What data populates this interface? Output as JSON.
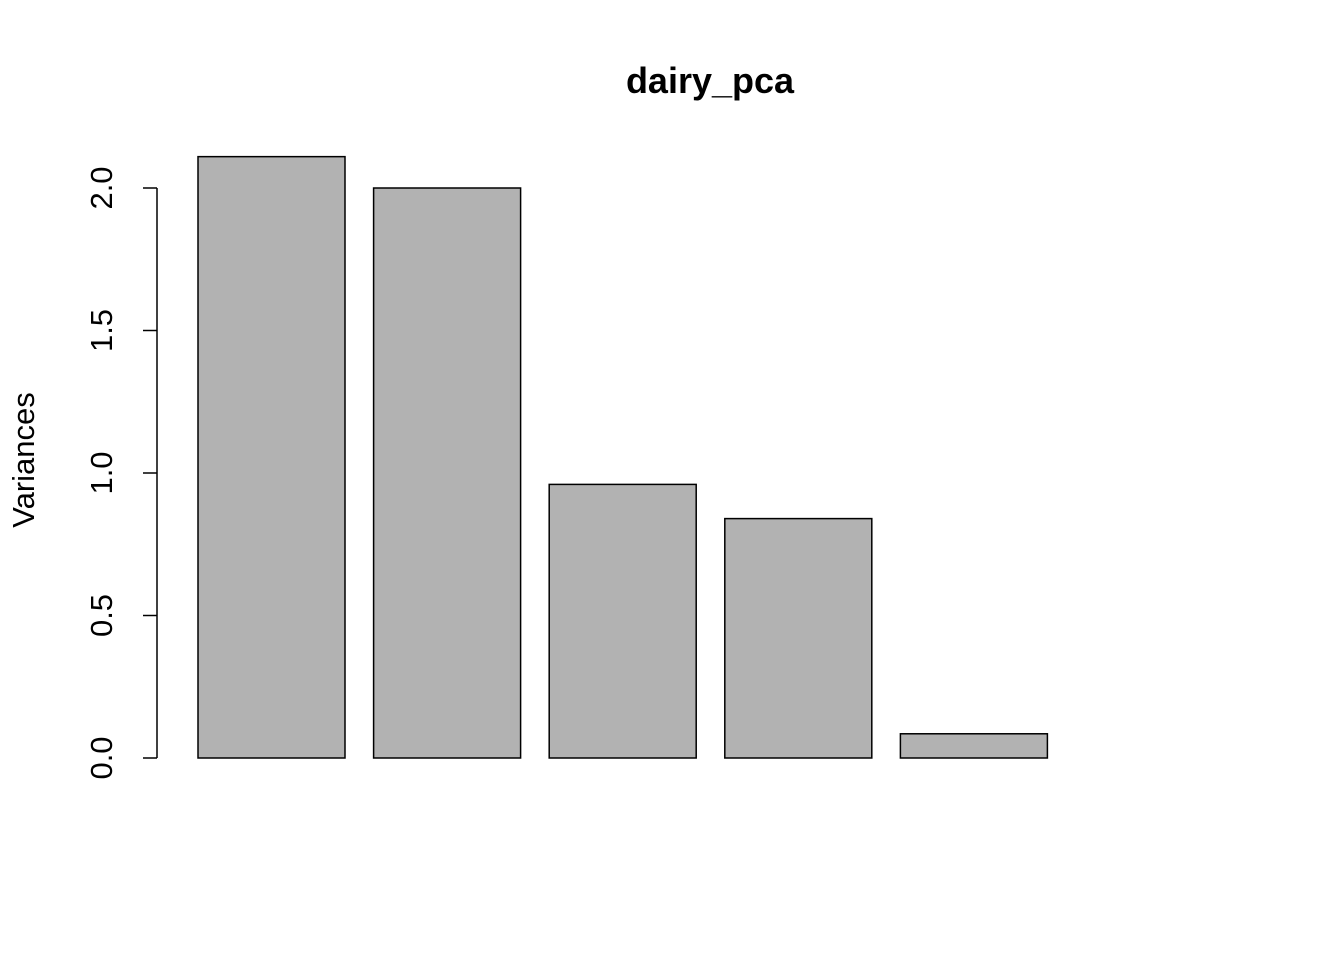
{
  "chart_data": {
    "type": "bar",
    "title": "dairy_pca",
    "xlabel": "",
    "ylabel": "Variances",
    "categories": [
      "",
      "",
      "",
      "",
      "",
      ""
    ],
    "values": [
      2.11,
      2.0,
      0.96,
      0.84,
      0.085,
      0.0
    ],
    "ylim": [
      0,
      2.0
    ],
    "yticks": [
      "0.0",
      "0.5",
      "1.0",
      "1.5",
      "2.0"
    ],
    "grid": false,
    "legend": "none",
    "colors": {
      "bar_fill": "#b2b2b2",
      "bar_stroke": "#000000"
    }
  }
}
